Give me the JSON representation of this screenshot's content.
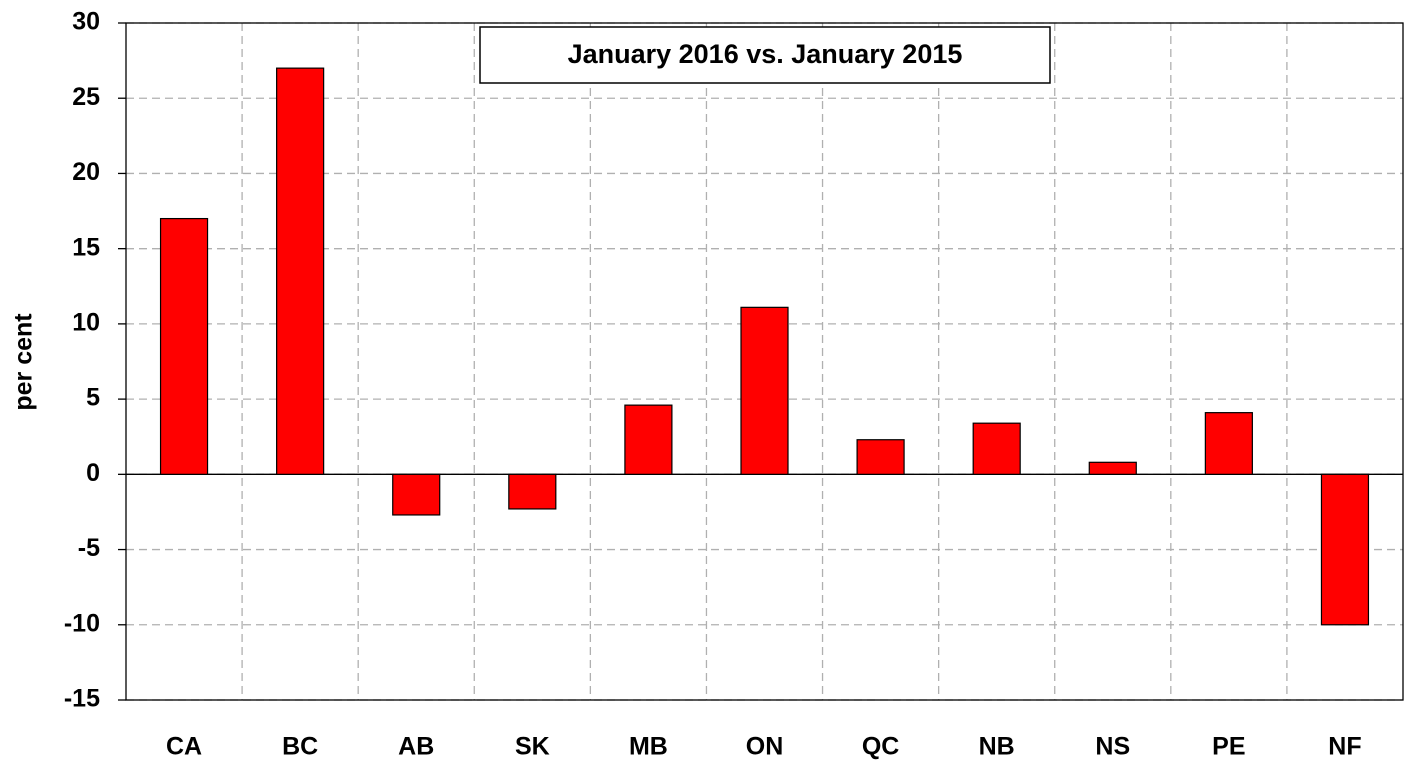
{
  "chart_data": {
    "type": "bar",
    "title": "January 2016 vs. January 2015",
    "ylabel": "per cent",
    "categories": [
      "CA",
      "BC",
      "AB",
      "SK",
      "MB",
      "ON",
      "QC",
      "NB",
      "NS",
      "PE",
      "NF"
    ],
    "values": [
      17,
      27,
      -2.7,
      -2.3,
      4.6,
      11.1,
      2.3,
      3.4,
      0.8,
      4.1,
      -10
    ],
    "color": "#ff0000",
    "ylim": [
      -15,
      30
    ],
    "yticks": [
      -15,
      -10,
      -5,
      0,
      5,
      10,
      15,
      20,
      25,
      30
    ],
    "grid": true
  }
}
